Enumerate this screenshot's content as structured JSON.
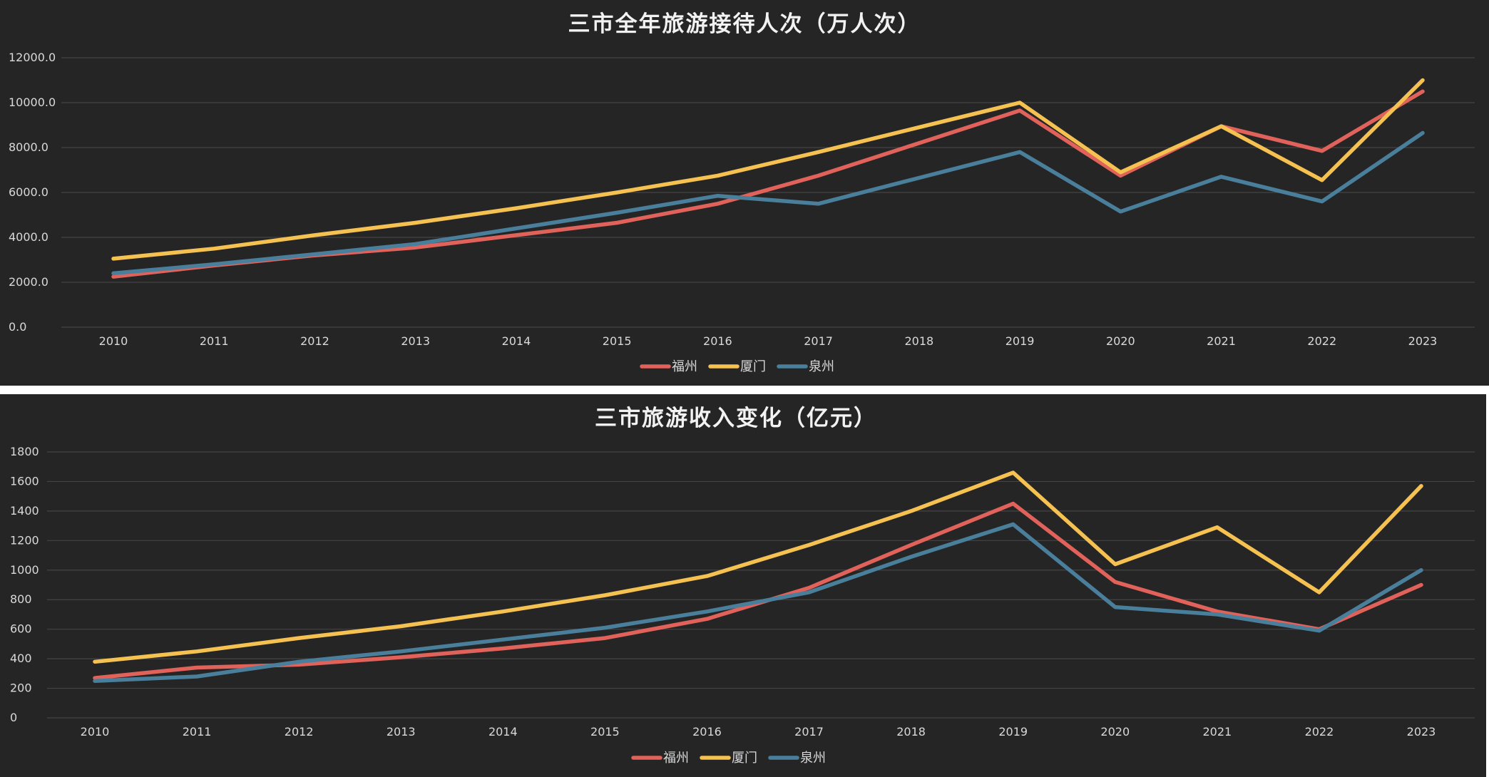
{
  "chart_data": [
    {
      "type": "line",
      "title": "三市全年旅游接待人次（万人次）",
      "xlabel": "",
      "ylabel": "",
      "categories": [
        "2010",
        "2011",
        "2012",
        "2013",
        "2014",
        "2015",
        "2016",
        "2017",
        "2018",
        "2019",
        "2020",
        "2021",
        "2022",
        "2023"
      ],
      "ylim": [
        0,
        12000
      ],
      "yticks": [
        "0.0",
        "2000.0",
        "4000.0",
        "6000.0",
        "8000.0",
        "10000.0",
        "12000.0"
      ],
      "grid": true,
      "legend_position": "bottom",
      "series": [
        {
          "name": "福州",
          "color": "#e0625a",
          "values": [
            2250,
            2750,
            3200,
            3550,
            4100,
            4650,
            5500,
            6750,
            8200,
            9650,
            6750,
            8950,
            7850,
            10500
          ]
        },
        {
          "name": "厦门",
          "color": "#f5c150",
          "values": [
            3050,
            3500,
            4100,
            4650,
            5300,
            6000,
            6750,
            7800,
            8900,
            10000,
            6900,
            8950,
            6550,
            11000
          ]
        },
        {
          "name": "泉州",
          "color": "#4a7f9c",
          "values": [
            2400,
            2800,
            3250,
            3700,
            4400,
            5100,
            5850,
            5500,
            6650,
            7800,
            5150,
            6700,
            5600,
            8650
          ]
        }
      ]
    },
    {
      "type": "line",
      "title": "三市旅游收入变化（亿元）",
      "xlabel": "",
      "ylabel": "",
      "categories": [
        "2010",
        "2011",
        "2012",
        "2013",
        "2014",
        "2015",
        "2016",
        "2017",
        "2018",
        "2019",
        "2020",
        "2021",
        "2022",
        "2023"
      ],
      "ylim": [
        0,
        1800
      ],
      "yticks": [
        "0",
        "200",
        "400",
        "600",
        "800",
        "1000",
        "1200",
        "1400",
        "1600",
        "1800"
      ],
      "grid": true,
      "legend_position": "bottom",
      "series": [
        {
          "name": "福州",
          "color": "#e0625a",
          "values": [
            270,
            340,
            360,
            410,
            470,
            540,
            670,
            880,
            1170,
            1450,
            920,
            720,
            600,
            900
          ]
        },
        {
          "name": "厦门",
          "color": "#f5c150",
          "values": [
            380,
            450,
            540,
            620,
            720,
            830,
            960,
            1170,
            1400,
            1660,
            1040,
            1290,
            850,
            1570
          ]
        },
        {
          "name": "泉州",
          "color": "#4a7f9c",
          "values": [
            250,
            280,
            380,
            450,
            530,
            610,
            720,
            850,
            1090,
            1310,
            750,
            700,
            590,
            1000
          ]
        }
      ]
    }
  ]
}
